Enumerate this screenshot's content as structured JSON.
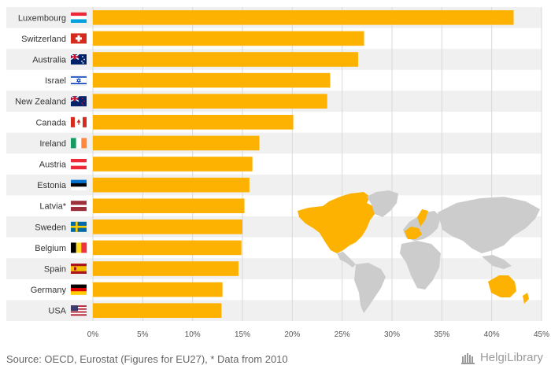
{
  "chart_data": {
    "type": "bar",
    "orientation": "horizontal",
    "categories": [
      "Luxembourg",
      "Switzerland",
      "Australia",
      "Israel",
      "New Zealand",
      "Canada",
      "Ireland",
      "Austria",
      "Estonia",
      "Latvia*",
      "Sweden",
      "Belgium",
      "Spain",
      "Germany",
      "USA"
    ],
    "values": [
      42.2,
      27.2,
      26.6,
      23.8,
      23.5,
      20.1,
      16.7,
      16.0,
      15.7,
      15.2,
      15.0,
      14.9,
      14.6,
      13.0,
      12.9
    ],
    "xlim": [
      0,
      45
    ],
    "xticks": [
      "0%",
      "5%",
      "10%",
      "15%",
      "20%",
      "25%",
      "30%",
      "35%",
      "40%",
      "45%"
    ],
    "bar_color": "#fdb100",
    "stripe_color": "#f0f0f0",
    "grid": true,
    "inset": "world map highlighting the listed countries in orange"
  },
  "flags": [
    "flag-luxembourg-icon",
    "flag-switzerland-icon",
    "flag-australia-icon",
    "flag-israel-icon",
    "flag-new-zealand-icon",
    "flag-canada-icon",
    "flag-ireland-icon",
    "flag-austria-icon",
    "flag-estonia-icon",
    "flag-latvia-icon",
    "flag-sweden-icon",
    "flag-belgium-icon",
    "flag-spain-icon",
    "flag-germany-icon",
    "flag-usa-icon"
  ],
  "footer": {
    "source": "Source: OECD, Eurostat (Figures for EU27), * Data from 2010",
    "logo_text": "HelgiLibrary"
  },
  "colors": {
    "bar": "#fdb100",
    "map_highlight": "#fdb100",
    "map_base": "#cccccc"
  }
}
